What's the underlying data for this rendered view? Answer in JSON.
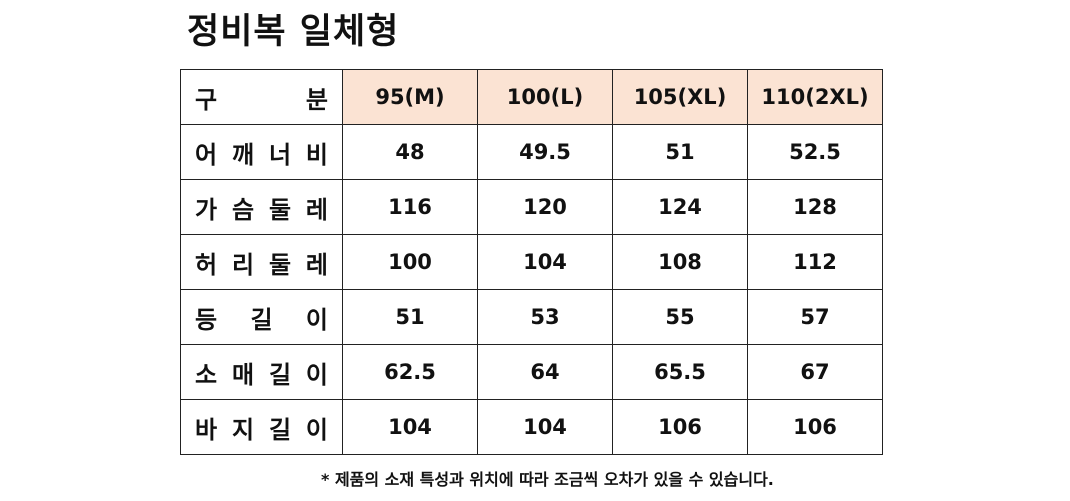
{
  "title": "정비복 일체형",
  "table": {
    "header_label": "구 분",
    "sizes": [
      "95(M)",
      "100(L)",
      "105(XL)",
      "110(2XL)"
    ],
    "rows": [
      {
        "label": "어깨너비",
        "values": [
          "48",
          "49.5",
          "51",
          "52.5"
        ]
      },
      {
        "label": "가슴둘레",
        "values": [
          "116",
          "120",
          "124",
          "128"
        ]
      },
      {
        "label": "허리둘레",
        "values": [
          "100",
          "104",
          "108",
          "112"
        ]
      },
      {
        "label": "등길이",
        "values": [
          "51",
          "53",
          "55",
          "57"
        ]
      },
      {
        "label": "소매길이",
        "values": [
          "62.5",
          "64",
          "65.5",
          "67"
        ]
      },
      {
        "label": "바지길이",
        "values": [
          "104",
          "104",
          "106",
          "106"
        ]
      }
    ]
  },
  "note": "* 제품의 소재 특성과 위치에 따라 조금씩 오차가 있을 수 있습니다.",
  "colors": {
    "header_fill": "#fbe3d3",
    "border": "#222222",
    "text": "#111111"
  }
}
